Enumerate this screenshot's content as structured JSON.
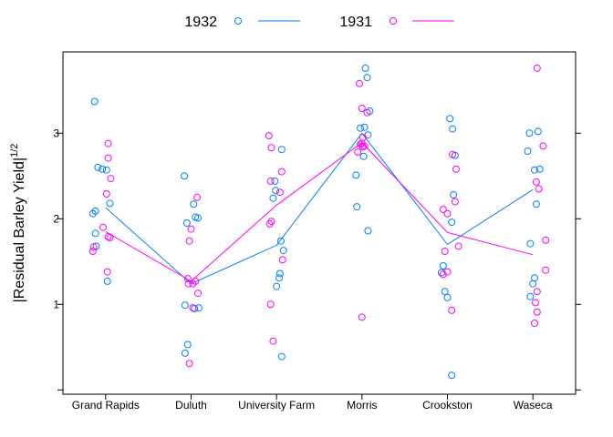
{
  "chart_data": {
    "type": "scatter",
    "ylabel": "|Residual Barley Yield|",
    "ylabel_sup": "1/2",
    "categories": [
      "Grand Rapids",
      "Duluth",
      "University Farm",
      "Morris",
      "Crookston",
      "Waseca"
    ],
    "ylim": [
      -0.05,
      3.95
    ],
    "yticks": [
      1,
      2,
      3
    ],
    "legend_position": "top",
    "grid": false,
    "series": [
      {
        "name": "1932",
        "color": "#0080ff",
        "points": [
          [
            [
              -0.13,
              3.37
            ],
            [
              -0.09,
              2.6
            ],
            [
              -0.04,
              2.58
            ],
            [
              0.01,
              2.57
            ],
            [
              0.05,
              2.18
            ],
            [
              -0.15,
              2.06
            ],
            [
              -0.12,
              2.09
            ],
            [
              -0.12,
              1.83
            ],
            [
              -0.11,
              1.68
            ],
            [
              0.02,
              1.27
            ]
          ],
          [
            [
              -0.08,
              2.5
            ],
            [
              0.03,
              2.17
            ],
            [
              0.05,
              2.02
            ],
            [
              0.08,
              2.01
            ],
            [
              -0.05,
              1.95
            ],
            [
              -0.07,
              0.99
            ],
            [
              0.04,
              0.95
            ],
            [
              0.09,
              0.96
            ],
            [
              -0.04,
              0.53
            ],
            [
              -0.07,
              0.43
            ]
          ],
          [
            [
              0.06,
              2.81
            ],
            [
              -0.02,
              2.44
            ],
            [
              -0.01,
              2.33
            ],
            [
              -0.04,
              2.24
            ],
            [
              0.05,
              1.74
            ],
            [
              0.08,
              1.63
            ],
            [
              0.04,
              1.36
            ],
            [
              0.03,
              1.31
            ],
            [
              0.0,
              1.21
            ],
            [
              0.06,
              0.39
            ]
          ],
          [
            [
              0.04,
              3.76
            ],
            [
              0.06,
              3.65
            ],
            [
              -0.02,
              3.06
            ],
            [
              0.03,
              3.07
            ],
            [
              0.07,
              2.98
            ],
            [
              0.09,
              3.26
            ],
            [
              0.02,
              2.73
            ],
            [
              -0.07,
              2.51
            ],
            [
              -0.06,
              2.14
            ],
            [
              0.07,
              1.86
            ]
          ],
          [
            [
              0.03,
              3.17
            ],
            [
              0.06,
              3.05
            ],
            [
              0.09,
              2.74
            ],
            [
              0.07,
              2.28
            ],
            [
              0.05,
              1.96
            ],
            [
              -0.05,
              1.45
            ],
            [
              -0.07,
              1.37
            ],
            [
              -0.03,
              1.15
            ],
            [
              0.0,
              1.08
            ],
            [
              0.05,
              0.17
            ]
          ],
          [
            [
              -0.04,
              3.0
            ],
            [
              0.06,
              3.02
            ],
            [
              -0.06,
              2.79
            ],
            [
              0.02,
              2.57
            ],
            [
              0.08,
              2.58
            ],
            [
              0.04,
              2.17
            ],
            [
              -0.03,
              1.71
            ],
            [
              0.02,
              1.31
            ],
            [
              0.0,
              1.24
            ],
            [
              -0.03,
              1.09
            ]
          ]
        ],
        "line": [
          2.13,
          1.24,
          1.69,
          3.0,
          1.7,
          2.34
        ]
      },
      {
        "name": "1931",
        "color": "#ff00ff",
        "points": [
          [
            [
              0.03,
              2.88
            ],
            [
              0.03,
              2.71
            ],
            [
              0.06,
              2.47
            ],
            [
              0.01,
              2.29
            ],
            [
              -0.03,
              1.9
            ],
            [
              0.03,
              1.79
            ],
            [
              0.05,
              1.78
            ],
            [
              -0.14,
              1.67
            ],
            [
              -0.15,
              1.62
            ],
            [
              0.02,
              1.38
            ]
          ],
          [
            [
              0.07,
              2.25
            ],
            [
              0.0,
              1.88
            ],
            [
              -0.02,
              1.74
            ],
            [
              -0.04,
              1.3
            ],
            [
              -0.03,
              1.24
            ],
            [
              0.02,
              1.24
            ],
            [
              0.05,
              1.27
            ],
            [
              0.08,
              1.13
            ],
            [
              -0.02,
              0.31
            ],
            [
              0.02,
              0.96
            ]
          ],
          [
            [
              -0.09,
              2.97
            ],
            [
              -0.06,
              2.83
            ],
            [
              0.06,
              2.55
            ],
            [
              -0.07,
              2.44
            ],
            [
              0.04,
              2.31
            ],
            [
              -0.06,
              1.97
            ],
            [
              -0.08,
              1.94
            ],
            [
              0.07,
              1.52
            ],
            [
              -0.07,
              1.0
            ],
            [
              -0.04,
              0.57
            ]
          ],
          [
            [
              -0.03,
              3.58
            ],
            [
              0.0,
              3.29
            ],
            [
              0.06,
              3.24
            ],
            [
              0.01,
              2.95
            ],
            [
              0.0,
              2.88
            ],
            [
              0.03,
              2.85
            ],
            [
              -0.05,
              2.78
            ],
            [
              -0.02,
              2.87
            ],
            [
              0.01,
              2.84
            ],
            [
              0.0,
              0.85
            ]
          ],
          [
            [
              -0.05,
              2.11
            ],
            [
              0.06,
              2.75
            ],
            [
              0.1,
              2.58
            ],
            [
              0.09,
              2.2
            ],
            [
              0.0,
              2.06
            ],
            [
              0.13,
              1.68
            ],
            [
              -0.03,
              1.62
            ],
            [
              -0.05,
              1.35
            ],
            [
              0.0,
              1.38
            ],
            [
              0.05,
              0.93
            ]
          ],
          [
            [
              0.05,
              3.76
            ],
            [
              0.12,
              2.85
            ],
            [
              0.04,
              2.43
            ],
            [
              0.07,
              2.35
            ],
            [
              0.15,
              1.75
            ],
            [
              0.15,
              1.4
            ],
            [
              0.05,
              1.15
            ],
            [
              0.03,
              1.02
            ],
            [
              0.05,
              0.91
            ],
            [
              0.02,
              0.78
            ]
          ]
        ],
        "line": [
          1.85,
          1.27,
          2.16,
          2.89,
          1.84,
          1.58
        ]
      }
    ]
  }
}
